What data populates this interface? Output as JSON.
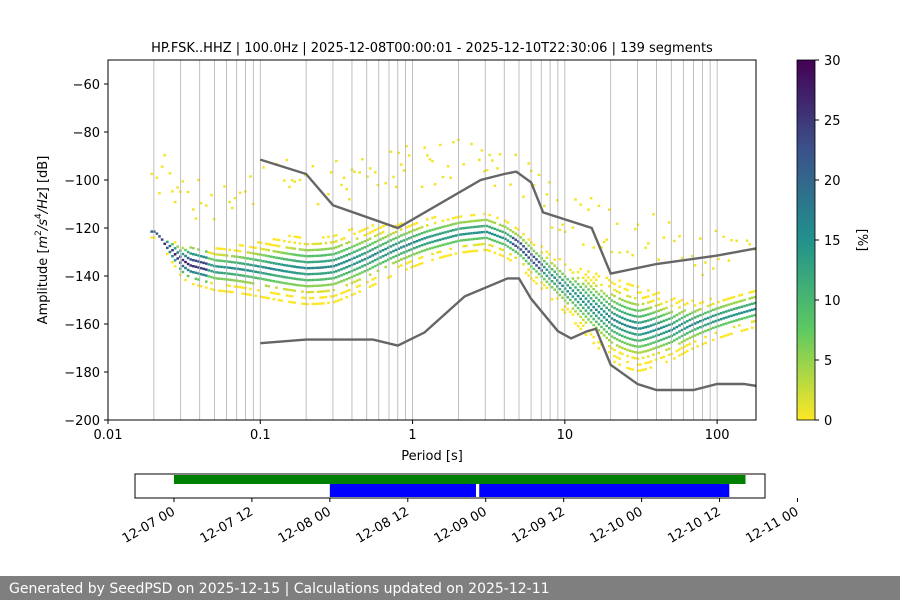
{
  "chart_data": [
    {
      "type": "heatmap",
      "title": "HP.FSK..HHZ | 100.0Hz | 2025-12-08T00:00:01 - 2025-12-10T22:30:06 | 139 segments",
      "xlabel": "Period [s]",
      "ylabel_parts": [
        "Amplitude [",
        "m",
        "2",
        "/s",
        "4",
        "/Hz",
        "] [dB]"
      ],
      "x_scale": "log",
      "xlim": [
        0.01,
        180
      ],
      "ylim": [
        -200,
        -50
      ],
      "x_tick_labels": [
        "0.01",
        "0.1",
        "1",
        "10",
        "100"
      ],
      "y_ticks": [
        -60,
        -80,
        -100,
        -120,
        -140,
        -160,
        -180,
        -200
      ],
      "y_tick_labels": [
        "−60",
        "−80",
        "−100",
        "−120",
        "−140",
        "−160",
        "−180",
        "−200"
      ],
      "grid": true,
      "colorbar": {
        "label": "[%]",
        "range": [
          0,
          30
        ],
        "ticks": [
          0,
          5,
          10,
          15,
          20,
          25,
          30
        ],
        "colors": [
          "#fde725",
          "#5ec962",
          "#21918c",
          "#3b528b",
          "#440154"
        ]
      },
      "density_core": {
        "period": [
          0.02,
          0.03,
          0.05,
          0.08,
          0.12,
          0.2,
          0.3,
          0.5,
          0.8,
          1.2,
          2,
          3,
          4,
          5,
          6,
          8,
          10,
          15,
          20,
          30,
          50,
          80,
          120,
          180
        ],
        "amplitude": [
          -122,
          -134,
          -137,
          -137,
          -137,
          -137,
          -136,
          -132,
          -128,
          -125,
          -122,
          -121,
          -124,
          -128,
          -133,
          -140,
          -145,
          -153,
          -158,
          -162,
          -162,
          -159,
          -156,
          -153
        ]
      },
      "reference_curves": [
        {
          "period": [
            0.1,
            0.2,
            0.3,
            0.8,
            2.8,
            4,
            4.8,
            6,
            7.2,
            15,
            20,
            40,
            100,
            180
          ],
          "amplitude": [
            -91.5,
            -97.5,
            -110.5,
            -120,
            -100,
            -97.5,
            -96.5,
            -101,
            -113.5,
            -120,
            -139,
            -135,
            -131.5,
            -128.5
          ]
        },
        {
          "period": [
            0.1,
            0.2,
            0.55,
            0.8,
            1.2,
            2.2,
            4.2,
            5,
            6,
            9,
            11,
            14,
            16,
            20,
            30,
            40,
            70,
            100,
            150,
            180
          ],
          "amplitude": [
            -168,
            -166.5,
            -166.5,
            -169,
            -163.5,
            -148.5,
            -141,
            -141,
            -149.5,
            -163,
            -166,
            -163,
            -162,
            -177,
            -185,
            -187.5,
            -187.5,
            -185,
            -185,
            -185.8
          ]
        }
      ]
    },
    {
      "type": "timeline",
      "tick_labels": [
        "12-07 00",
        "12-07 12",
        "12-08 00",
        "12-08 12",
        "12-09 00",
        "12-09 12",
        "12-10 00",
        "12-10 12",
        "12-11 00"
      ],
      "range_hours": [
        -6,
        91
      ],
      "bars": [
        {
          "color": "#008000",
          "start_hour": 0,
          "end_hour": 88,
          "row": "top"
        },
        {
          "color": "#0000ff",
          "start_hour": 24,
          "end_hour": 46.5,
          "row": "bottom"
        },
        {
          "color": "#0000ff",
          "start_hour": 47,
          "end_hour": 85.5,
          "row": "bottom"
        }
      ]
    }
  ],
  "footer": {
    "text": "Generated by SeedPSD on 2025-12-15 | Calculations updated on 2025-12-11"
  }
}
